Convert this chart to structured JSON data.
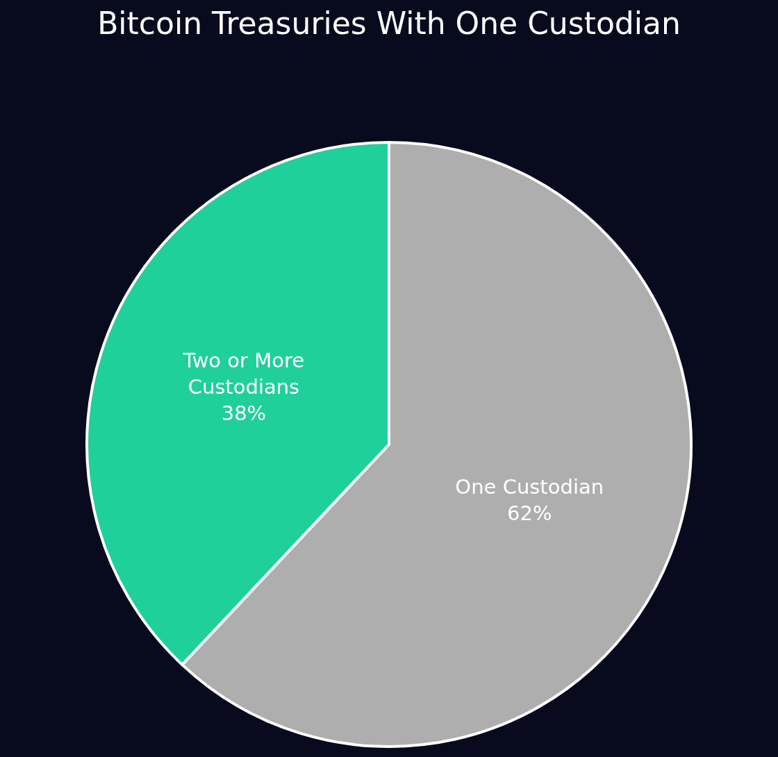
{
  "chart_data": {
    "type": "pie",
    "title": "Bitcoin Treasuries With One Custodian",
    "categories": [
      "One Custodian",
      "Two or More Custodians"
    ],
    "values": [
      62,
      38
    ],
    "colors": [
      "#aeaeae",
      "#20d09a"
    ],
    "value_labels": [
      "62%",
      "38%"
    ]
  }
}
